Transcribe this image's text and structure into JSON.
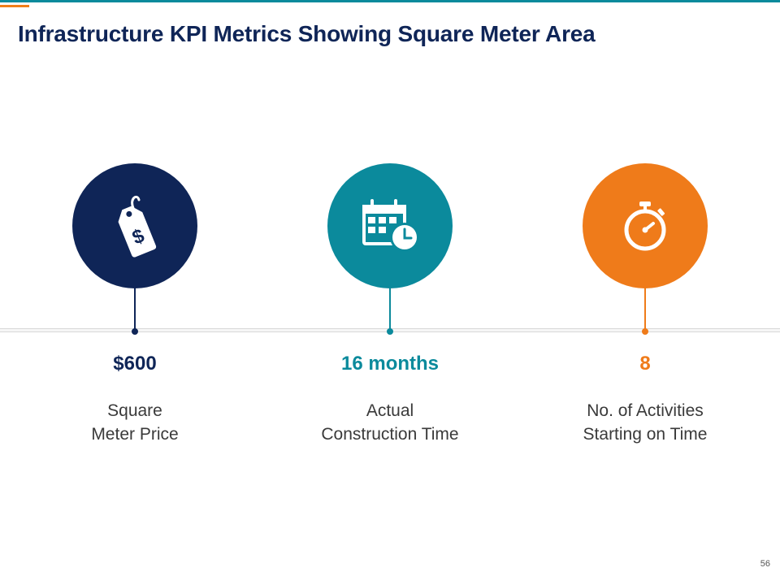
{
  "title": "Infrastructure KPI Metrics Showing Square Meter Area",
  "kpis": [
    {
      "icon": "price-tag-dollar-icon",
      "color": "#0f2557",
      "value": "$600",
      "label_lines": [
        "Square",
        "Meter Price"
      ]
    },
    {
      "icon": "calendar-clock-icon",
      "color": "#0b8a9c",
      "value": "16 months",
      "label_lines": [
        "Actual",
        "Construction Time"
      ]
    },
    {
      "icon": "stopwatch-icon",
      "color": "#ef7b1a",
      "value": "8",
      "label_lines": [
        "No. of Activities",
        "Starting on Time"
      ]
    }
  ],
  "page_number": "56",
  "colors": {
    "top_bar": "#0b8a9c",
    "accent": "#f07f1a",
    "title": "#0f2557"
  }
}
